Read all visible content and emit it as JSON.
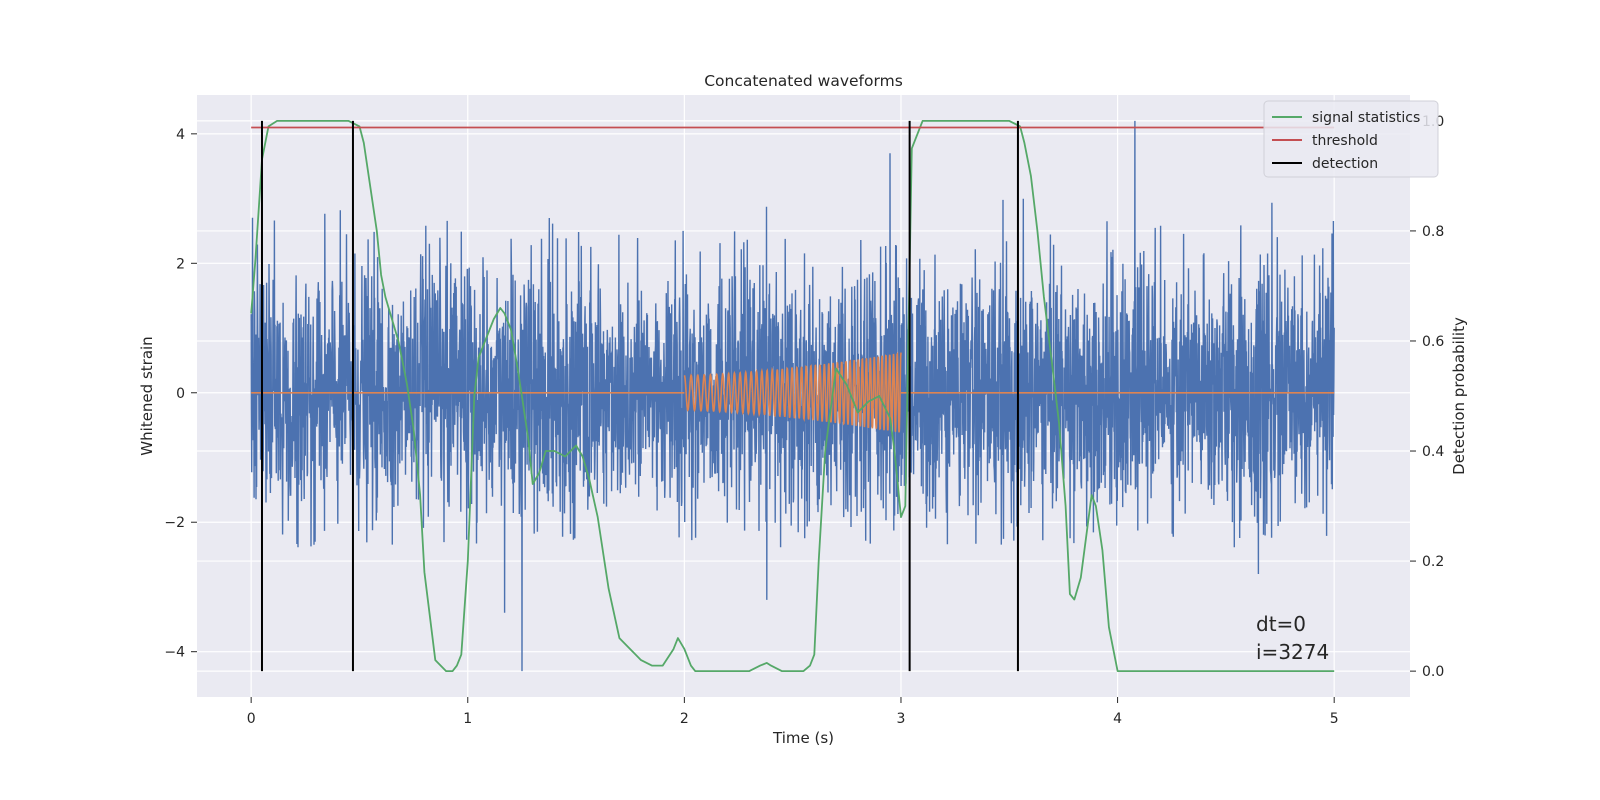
{
  "chart_data": {
    "type": "line",
    "title": "Concatenated waveforms",
    "xlabel": "Time (s)",
    "ylabel": "Whitened strain",
    "y2label": "Detection probability",
    "xlim": [
      -0.25,
      5.35
    ],
    "ylim": [
      -4.7,
      4.6
    ],
    "y2lim": [
      -0.047,
      1.047
    ],
    "xticks": [
      0,
      1,
      2,
      3,
      4,
      5
    ],
    "xtick_labels": [
      "0",
      "1",
      "2",
      "3",
      "4",
      "5"
    ],
    "yticks": [
      -4,
      -2,
      0,
      2,
      4
    ],
    "ytick_labels": [
      "−4",
      "−2",
      "0",
      "2",
      "4"
    ],
    "y2ticks": [
      0.0,
      0.2,
      0.4,
      0.6,
      0.8,
      1.0
    ],
    "y2tick_labels": [
      "0.0",
      "0.2",
      "0.4",
      "0.6",
      "0.8",
      "1.0"
    ],
    "grid": true,
    "legend_position": "top-right",
    "legend": [
      "signal statistics",
      "threshold",
      "detection"
    ],
    "strain_noise": {
      "x_range": [
        0,
        5
      ],
      "core_band": [
        -0.9,
        0.8
      ],
      "spike_envelope": [
        -2.4,
        3.0
      ],
      "notable_spikes": [
        {
          "x": 1.25,
          "y": -4.3
        },
        {
          "x": 2.95,
          "y": 3.7
        },
        {
          "x": 4.08,
          "y": 4.2
        },
        {
          "x": 4.65,
          "y": -2.8
        },
        {
          "x": 1.17,
          "y": -3.4
        },
        {
          "x": 2.38,
          "y": -3.2
        }
      ]
    },
    "injected_chirp": {
      "x_range": [
        2.0,
        3.0
      ],
      "amplitude_start": 0.27,
      "amplitude_end": 0.62,
      "cycles": 45,
      "baseline": 0
    },
    "signal_statistics": {
      "x": [
        0,
        0.02,
        0.05,
        0.08,
        0.12,
        0.2,
        0.3,
        0.4,
        0.45,
        0.5,
        0.52,
        0.55,
        0.58,
        0.6,
        0.62,
        0.65,
        0.68,
        0.7,
        0.72,
        0.75,
        0.78,
        0.8,
        0.85,
        0.9,
        0.93,
        0.95,
        0.97,
        1.0,
        1.03,
        1.05,
        1.08,
        1.12,
        1.15,
        1.17,
        1.2,
        1.23,
        1.25,
        1.28,
        1.3,
        1.33,
        1.36,
        1.4,
        1.45,
        1.5,
        1.53,
        1.56,
        1.6,
        1.65,
        1.7,
        1.75,
        1.8,
        1.85,
        1.9,
        1.95,
        1.97,
        2.0,
        2.03,
        2.05,
        2.1,
        2.2,
        2.3,
        2.35,
        2.38,
        2.4,
        2.45,
        2.5,
        2.55,
        2.58,
        2.6,
        2.62,
        2.65,
        2.7,
        2.75,
        2.8,
        2.85,
        2.9,
        2.95,
        2.97,
        3.0,
        3.02,
        3.05,
        3.1,
        3.2,
        3.3,
        3.4,
        3.5,
        3.55,
        3.57,
        3.6,
        3.63,
        3.66,
        3.7,
        3.73,
        3.76,
        3.78,
        3.8,
        3.83,
        3.86,
        3.88,
        3.9,
        3.93,
        3.96,
        4.0,
        4.1,
        4.3,
        4.5,
        4.7,
        5.0
      ],
      "y": [
        0.65,
        0.75,
        0.93,
        0.99,
        1.0,
        1.0,
        1.0,
        1.0,
        1.0,
        0.99,
        0.96,
        0.88,
        0.8,
        0.72,
        0.68,
        0.64,
        0.6,
        0.56,
        0.52,
        0.44,
        0.32,
        0.18,
        0.02,
        0.0,
        0.0,
        0.01,
        0.03,
        0.2,
        0.5,
        0.57,
        0.6,
        0.64,
        0.66,
        0.65,
        0.62,
        0.55,
        0.5,
        0.42,
        0.34,
        0.36,
        0.4,
        0.4,
        0.39,
        0.41,
        0.39,
        0.35,
        0.28,
        0.15,
        0.06,
        0.04,
        0.02,
        0.01,
        0.01,
        0.04,
        0.06,
        0.04,
        0.01,
        0.0,
        0.0,
        0.0,
        0.0,
        0.01,
        0.015,
        0.01,
        0.0,
        0.0,
        0.0,
        0.01,
        0.03,
        0.2,
        0.4,
        0.55,
        0.52,
        0.47,
        0.49,
        0.5,
        0.46,
        0.4,
        0.28,
        0.3,
        0.95,
        1.0,
        1.0,
        1.0,
        1.0,
        1.0,
        0.99,
        0.96,
        0.9,
        0.8,
        0.68,
        0.55,
        0.45,
        0.3,
        0.14,
        0.13,
        0.17,
        0.26,
        0.32,
        0.3,
        0.22,
        0.08,
        0.0,
        0.0,
        0.0,
        0.0,
        0.0,
        0.0
      ]
    },
    "threshold": {
      "y": 0.988,
      "x_range": [
        0,
        5
      ]
    },
    "detections_x": [
      0.05,
      0.47,
      3.04,
      3.54
    ],
    "annotation_lines": [
      "dt=0",
      "i=3274"
    ],
    "colors": {
      "axes_bg": "#eaeaf2",
      "grid": "#ffffff",
      "strain": "#4c72b0",
      "chirp": "#dd8452",
      "signal_statistics": "#55a868",
      "threshold": "#c44e52",
      "detection": "#000000"
    }
  }
}
